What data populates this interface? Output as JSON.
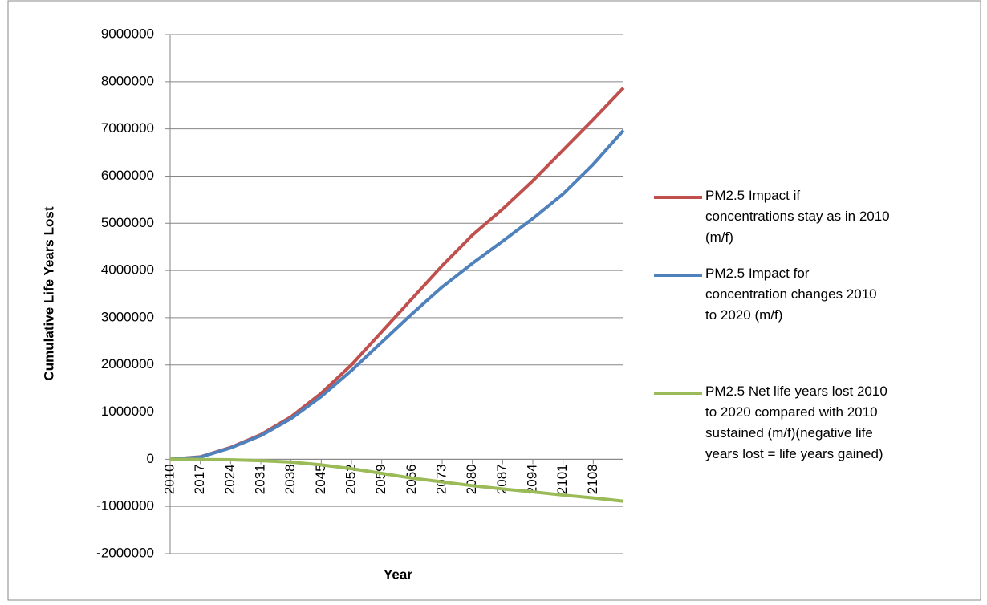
{
  "chart_data": {
    "type": "line",
    "y_label": "Cumulative Life Years Lost",
    "x_label": "Year",
    "x": [
      2010,
      2017,
      2024,
      2031,
      2038,
      2045,
      2052,
      2059,
      2066,
      2073,
      2080,
      2087,
      2094,
      2101,
      2108,
      2115
    ],
    "series": [
      {
        "name": "PM2.5 Impact if concentrations stay as in 2010 (m/f)",
        "color": "#c0504d",
        "values": [
          0,
          50000,
          250000,
          520000,
          900000,
          1400000,
          2000000,
          2700000,
          3400000,
          4100000,
          4750000,
          5300000,
          5900000,
          6550000,
          7200000,
          7870000
        ]
      },
      {
        "name": "PM2.5 Impact for concentration changes 2010 to 2020 (m/f)",
        "color": "#4f81bd",
        "values": [
          0,
          45000,
          240000,
          500000,
          860000,
          1330000,
          1880000,
          2480000,
          3080000,
          3650000,
          4150000,
          4620000,
          5100000,
          5620000,
          6250000,
          6970000
        ]
      },
      {
        "name": "PM2.5 Net life years lost 2010 to 2020 compared with 2010 sustained (m/f)(negative life years lost = life years gained)",
        "color": "#9bbb59",
        "values": [
          0,
          -5000,
          -10000,
          -30000,
          -60000,
          -120000,
          -200000,
          -300000,
          -400000,
          -480000,
          -560000,
          -630000,
          -690000,
          -760000,
          -820000,
          -890000
        ]
      }
    ],
    "xlim": [
      2010,
      2115
    ],
    "xticks": [
      2010,
      2017,
      2024,
      2031,
      2038,
      2045,
      2052,
      2059,
      2066,
      2073,
      2080,
      2087,
      2094,
      2101,
      2108
    ],
    "ylim": [
      -2000000,
      9000000
    ],
    "yticks": [
      -2000000,
      -1000000,
      0,
      1000000,
      2000000,
      3000000,
      4000000,
      5000000,
      6000000,
      7000000,
      8000000,
      9000000
    ],
    "grid": true,
    "legend": "right"
  }
}
